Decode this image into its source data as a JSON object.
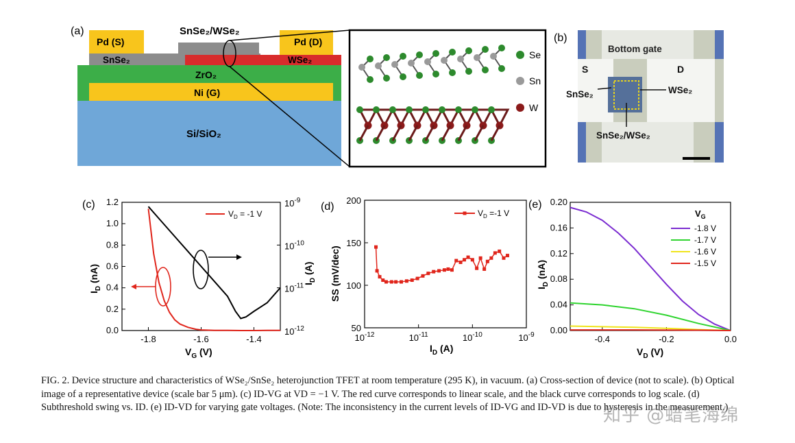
{
  "panel_a": {
    "label": "(a)",
    "layers": {
      "pd_s": "Pd (S)",
      "pd_d": "Pd (D)",
      "snse2": "SnSe₂",
      "wse2": "WSe₂",
      "heterojunction": "SnSe₂/WSe₂",
      "zro2": "ZrO₂",
      "ni": "Ni (G)",
      "sio2": "Si/SiO₂"
    },
    "legend": {
      "se": "Se",
      "sn": "Sn",
      "w": "W"
    },
    "colors": {
      "pd": "#f8c51c",
      "snse2": "#8c8c8c",
      "wse2": "#d82c2c",
      "zro2": "#3cae48",
      "ni": "#f8c51c",
      "sio2": "#6fa7d8",
      "se": "#2d8a2d",
      "sn": "#9a9a9a",
      "w": "#8b1a1a"
    }
  },
  "panel_b": {
    "label": "(b)",
    "bottom_gate": "Bottom gate",
    "s": "S",
    "d": "D",
    "snse2": "SnSe₂",
    "wse2": "WSe₂",
    "hetero": "SnSe₂/WSe₂"
  },
  "chart_data": [
    {
      "id": "c",
      "label": "(c)",
      "type": "line",
      "xlabel": "VG (V)",
      "ylabel_left": "ID (nA)",
      "ylabel_right": "ID (A)",
      "xlim": [
        -1.9,
        -1.3
      ],
      "ylim_left": [
        0,
        1.2
      ],
      "ylim_right_log": [
        -12,
        -9
      ],
      "x_ticks": [
        "-1.8",
        "-1.6",
        "-1.4"
      ],
      "y_ticks_left": [
        "0.0",
        "0.2",
        "0.4",
        "0.6",
        "0.8",
        "1.0",
        "1.2"
      ],
      "y_ticks_right": [
        "10-9",
        "10-10",
        "10-11",
        "10-12"
      ],
      "legend": "VD = -1 V",
      "series": [
        {
          "name": "linear",
          "color": "#e0251b",
          "x": [
            -1.8,
            -1.78,
            -1.76,
            -1.74,
            -1.72,
            -1.7,
            -1.68,
            -1.65,
            -1.62,
            -1.6,
            -1.55,
            -1.5,
            -1.45,
            -1.4,
            -1.35,
            -1.3
          ],
          "y": [
            1.14,
            0.72,
            0.45,
            0.28,
            0.17,
            0.1,
            0.06,
            0.03,
            0.012,
            0.006,
            0.002,
            0.001,
            0.0,
            0.0,
            0.001,
            0.002
          ]
        },
        {
          "name": "log",
          "color": "#000000",
          "x": [
            -1.8,
            -1.75,
            -1.7,
            -1.65,
            -1.6,
            -1.55,
            -1.5,
            -1.47,
            -1.45,
            -1.43,
            -1.4,
            -1.35,
            -1.3
          ],
          "y": [
            -9.1,
            -9.45,
            -9.8,
            -10.15,
            -10.5,
            -10.85,
            -11.2,
            -11.55,
            -11.72,
            -11.68,
            -11.55,
            -11.35,
            -11.0
          ]
        }
      ]
    },
    {
      "id": "d",
      "label": "(d)",
      "type": "line",
      "xlabel": "ID (A)",
      "ylabel": "SS (mV/dec)",
      "xlim_log": [
        -12,
        -9
      ],
      "ylim": [
        50,
        200
      ],
      "x_ticks": [
        "10-12",
        "10-11",
        "10-10",
        "10-9"
      ],
      "y_ticks": [
        "50",
        "100",
        "150",
        "200"
      ],
      "legend": "VD =-1 V",
      "color": "#e0251b",
      "logx": [
        -11.79,
        -11.77,
        -11.72,
        -11.66,
        -11.6,
        -11.5,
        -11.42,
        -11.32,
        -11.22,
        -11.12,
        -11.02,
        -10.92,
        -10.82,
        -10.72,
        -10.62,
        -10.52,
        -10.45,
        -10.38,
        -10.3,
        -10.22,
        -10.15,
        -10.08,
        -10.0,
        -9.92,
        -9.85,
        -9.78,
        -9.72,
        -9.65,
        -9.58,
        -9.5,
        -9.42,
        -9.35
      ],
      "values": [
        145,
        117,
        110,
        106,
        104,
        104,
        104,
        104,
        105,
        106,
        108,
        111,
        114,
        116,
        117,
        118,
        119,
        118,
        129,
        127,
        130,
        133,
        130,
        120,
        132,
        119,
        128,
        132,
        138,
        140,
        132,
        135
      ]
    },
    {
      "id": "e",
      "label": "(e)",
      "type": "line",
      "xlabel": "VD (V)",
      "ylabel": "ID (nA)",
      "xlim": [
        -0.5,
        0.0
      ],
      "ylim": [
        0,
        0.2
      ],
      "x_ticks": [
        "-0.4",
        "-0.2",
        "0.0"
      ],
      "y_ticks": [
        "0.00",
        "0.04",
        "0.08",
        "0.12",
        "0.16",
        "0.20"
      ],
      "legend_title": "VG",
      "series": [
        {
          "name": "-1.8 V",
          "color": "#7a2bd0",
          "x": [
            -0.5,
            -0.45,
            -0.4,
            -0.35,
            -0.3,
            -0.25,
            -0.2,
            -0.15,
            -0.1,
            -0.05,
            0.0
          ],
          "y": [
            0.192,
            0.185,
            0.172,
            0.152,
            0.128,
            0.1,
            0.072,
            0.046,
            0.025,
            0.01,
            0.0
          ]
        },
        {
          "name": "-1.7 V",
          "color": "#2fd42f",
          "x": [
            -0.5,
            -0.4,
            -0.3,
            -0.2,
            -0.1,
            0.0
          ],
          "y": [
            0.043,
            0.04,
            0.034,
            0.024,
            0.011,
            0.0
          ]
        },
        {
          "name": "-1.6 V",
          "color": "#f0e41a",
          "x": [
            -0.5,
            -0.4,
            -0.3,
            -0.2,
            -0.1,
            0.0
          ],
          "y": [
            0.007,
            0.006,
            0.005,
            0.0035,
            0.0015,
            0.0
          ]
        },
        {
          "name": "-1.5 V",
          "color": "#e0251b",
          "x": [
            -0.5,
            -0.3,
            -0.1,
            0.0
          ],
          "y": [
            0.001,
            0.001,
            0.0005,
            0.0
          ]
        }
      ]
    }
  ],
  "caption": "FIG. 2. Device structure and characteristics of WSe₂/SnSe₂ heterojunction TFET at room temperature (295 K), in vacuum. (a) Cross-section of device (not to scale). (b) Optical image of a representative device (scale bar 5 μm). (c) ID-VG at VD = −1 V. The red curve corresponds to linear scale, and the black curve corresponds to log scale. (d) Subthreshold swing vs. ID. (e) ID-VD for varying gate voltages. (Note: The inconsistency in the current levels of ID-VG and ID-VD is due to hysteresis in the measurement.)",
  "watermark": "知乎 @蜡笔海绵"
}
